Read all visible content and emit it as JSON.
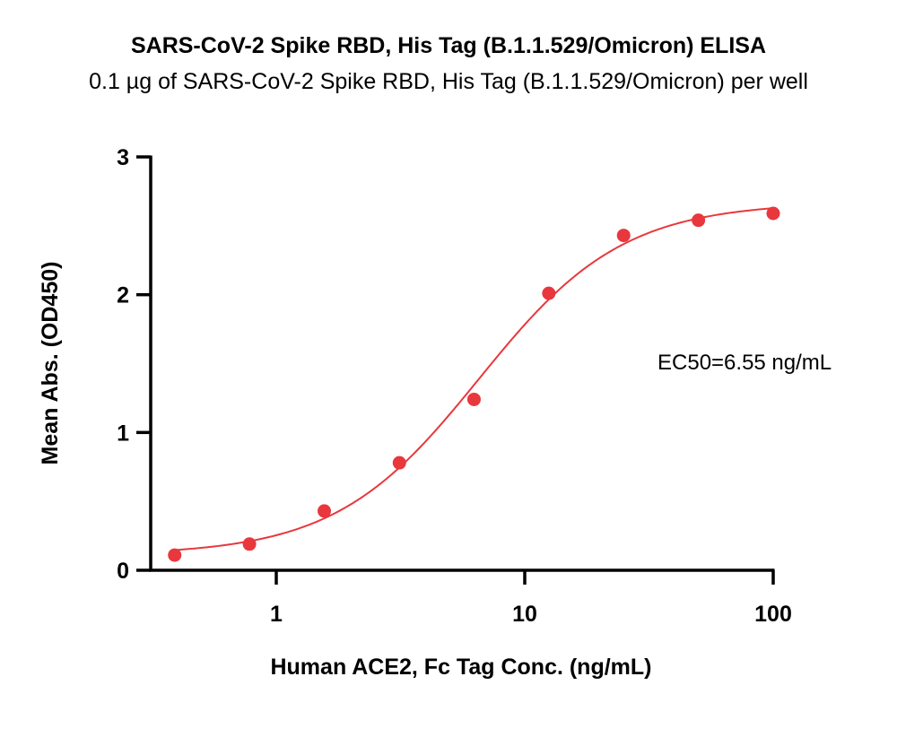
{
  "chart_data": {
    "type": "scatter",
    "title": "SARS-CoV-2 Spike RBD, His Tag (B.1.1.529/Omicron) ELISA",
    "subtitle": "0.1 µg of SARS-CoV-2 Spike RBD, His Tag (B.1.1.529/Omicron) per well",
    "xlabel": "Human ACE2, Fc Tag Conc. (ng/mL)",
    "ylabel": "Mean Abs. (OD450)",
    "x_scale": "log",
    "xlim": [
      0.4,
      100
    ],
    "ylim": [
      0,
      3
    ],
    "x_ticks": [
      1,
      10,
      100
    ],
    "x_tick_labels": [
      "1",
      "10",
      "100"
    ],
    "y_ticks": [
      0,
      1,
      2,
      3
    ],
    "y_tick_labels": [
      "0",
      "1",
      "2",
      "3"
    ],
    "grid": false,
    "series": [
      {
        "x": [
          0.39,
          0.78,
          1.56,
          3.13,
          6.25,
          12.5,
          25,
          50,
          100
        ],
        "y": [
          0.11,
          0.19,
          0.43,
          0.78,
          1.24,
          2.01,
          2.43,
          2.54,
          2.59
        ],
        "color": "#e8383d",
        "fit": {
          "model": "4PL",
          "bottom": 0.11,
          "top": 2.67,
          "ec50": 6.55,
          "hill": 1.5
        }
      }
    ],
    "annotation": "EC50=6.55 ng/mL"
  }
}
